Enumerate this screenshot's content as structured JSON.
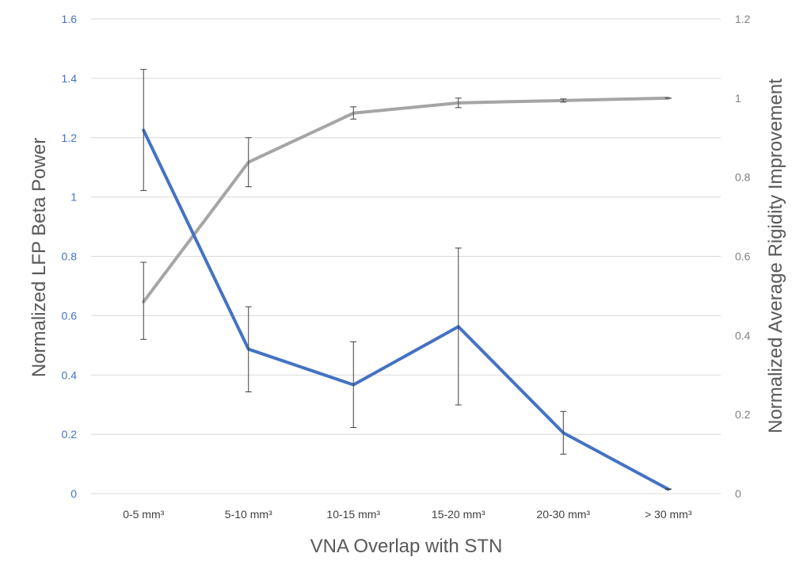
{
  "chart_data": {
    "type": "line",
    "xlabel": "VNA Overlap with STN",
    "ylabel": "Normalized LFP Beta Power",
    "y2label": "Normalized  Average Rigidity Improvement",
    "categories": [
      "0-5 mm³",
      "5-10 mm³",
      "10-15 mm³",
      "15-20 mm³",
      "20-30 mm³",
      "> 30 mm³"
    ],
    "ylim": [
      0,
      1.6
    ],
    "y2lim": [
      0,
      1.2
    ],
    "yticks": [
      "0",
      "0.2",
      "0.4",
      "0.6",
      "0.8",
      "1",
      "1.2",
      "1.4",
      "1.6"
    ],
    "y2ticks": [
      "0",
      "0.2",
      "0.4",
      "0.6",
      "0.8",
      "1",
      "1.2"
    ],
    "grid": true,
    "series": [
      {
        "name": "Normalized LFP Beta Power",
        "axis": "left",
        "color": "#4472C4",
        "values": [
          1.225,
          0.487,
          0.367,
          0.563,
          0.205,
          0.015
        ],
        "err_upper": [
          1.43,
          0.63,
          0.512,
          0.828,
          0.277,
          0.016
        ],
        "err_lower": [
          1.022,
          0.343,
          0.223,
          0.299,
          0.133,
          0.014
        ]
      },
      {
        "name": "Normalized Average Rigidity Improvement",
        "axis": "right",
        "color": "#A5A5A5",
        "values": [
          0.485,
          0.838,
          0.962,
          0.988,
          0.994,
          1.0
        ],
        "err_upper": [
          0.585,
          0.9,
          0.978,
          1.0,
          0.998,
          1.0
        ],
        "err_lower": [
          0.39,
          0.776,
          0.947,
          0.976,
          0.99,
          1.0
        ]
      }
    ],
    "colors": {
      "left_axis_ticks": "#4472C4",
      "right_axis_ticks": "#808080",
      "gridline": "#D9D9D9",
      "error_bar": "#404040"
    }
  }
}
